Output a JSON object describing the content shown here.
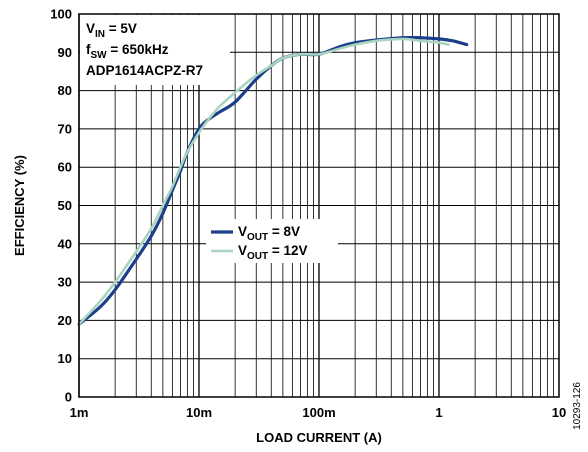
{
  "chart_data": {
    "type": "line",
    "title": "",
    "xlabel": "LOAD CURRENT (A)",
    "ylabel": "EFFICIENCY (%)",
    "x_scale": "log",
    "xlim": [
      0.001,
      10
    ],
    "ylim": [
      0,
      100
    ],
    "grid": true,
    "legend_position": "center",
    "x_tick_labels": [
      "1m",
      "10m",
      "100m",
      "1",
      "10"
    ],
    "x_tick_values": [
      0.001,
      0.01,
      0.1,
      1,
      10
    ],
    "y_tick_labels": [
      "0",
      "10",
      "20",
      "30",
      "40",
      "50",
      "60",
      "70",
      "80",
      "90",
      "100"
    ],
    "y_tick_values": [
      0,
      10,
      20,
      30,
      40,
      50,
      60,
      70,
      80,
      90,
      100
    ],
    "conditions": [
      {
        "main": "V",
        "sub": "IN",
        "rest": " = 5V"
      },
      {
        "main": "f",
        "sub": "SW",
        "rest": " = 650kHz"
      },
      {
        "main": "ADP1614ACPZ-R7",
        "sub": "",
        "rest": ""
      }
    ],
    "figure_id": "10293-126",
    "series": [
      {
        "name": "8V",
        "legend": {
          "main": "V",
          "sub": "OUT",
          "rest": " = 8V"
        },
        "color": "#1b3f8b",
        "x": [
          0.001,
          0.0015,
          0.002,
          0.003,
          0.004,
          0.005,
          0.006,
          0.007,
          0.008,
          0.01,
          0.012,
          0.015,
          0.02,
          0.03,
          0.04,
          0.05,
          0.07,
          0.1,
          0.15,
          0.2,
          0.3,
          0.5,
          0.7,
          1.0,
          1.3,
          1.7
        ],
        "y": [
          19,
          23.5,
          28,
          36,
          42,
          48,
          54,
          59,
          64,
          70,
          72.5,
          74.5,
          77,
          83,
          86.5,
          88.5,
          89.5,
          89.5,
          91.5,
          92.5,
          93.2,
          93.8,
          93.8,
          93.5,
          93,
          92
        ]
      },
      {
        "name": "12V",
        "legend": {
          "main": "V",
          "sub": "OUT",
          "rest": " = 12V"
        },
        "color": "#a9d4c0",
        "x": [
          0.001,
          0.0015,
          0.002,
          0.003,
          0.004,
          0.005,
          0.006,
          0.007,
          0.008,
          0.01,
          0.012,
          0.015,
          0.02,
          0.03,
          0.04,
          0.05,
          0.07,
          0.1,
          0.15,
          0.2,
          0.3,
          0.5,
          0.7,
          1.0,
          1.2
        ],
        "y": [
          19,
          25,
          30,
          38,
          44,
          50,
          55,
          60,
          64,
          69,
          72.5,
          76,
          79.5,
          84,
          86.5,
          88.5,
          89.5,
          89.5,
          91,
          92,
          93,
          93.5,
          93,
          92.5,
          92
        ]
      }
    ]
  }
}
